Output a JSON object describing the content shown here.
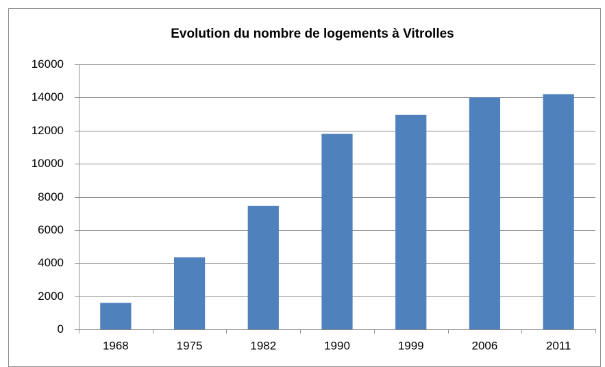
{
  "chart_data": {
    "type": "bar",
    "title": "Evolution du nombre de logements à Vitrolles",
    "categories": [
      "1968",
      "1975",
      "1982",
      "1990",
      "1999",
      "2006",
      "2011"
    ],
    "values": [
      1600,
      4350,
      7450,
      11800,
      12950,
      14000,
      14200
    ],
    "color": "#4f81bd",
    "ylim": [
      0,
      16000
    ],
    "yticks": [
      0,
      2000,
      4000,
      6000,
      8000,
      10000,
      12000,
      14000,
      16000
    ],
    "grid": true
  }
}
